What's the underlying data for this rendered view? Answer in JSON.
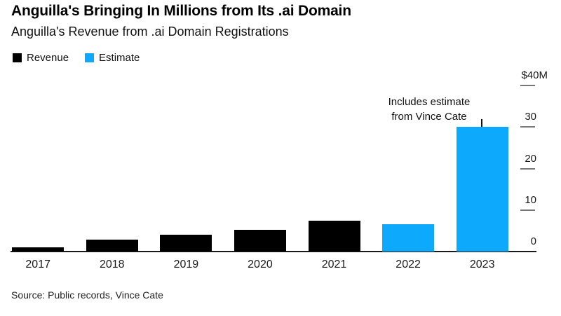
{
  "header": {
    "title": "Anguilla's Bringing In Millions from Its .ai Domain",
    "subtitle": "Anguilla's Revenue from .ai Domain Registrations"
  },
  "legend": {
    "items": [
      {
        "label": "Revenue",
        "color": "#000000"
      },
      {
        "label": "Estimate",
        "color": "#0da9fc"
      }
    ]
  },
  "annotation": {
    "line1": "Includes estimate",
    "line2": "from Vince Cate",
    "target_category": "2023"
  },
  "source": "Source: Public records, Vince Cate",
  "chart_data": {
    "type": "bar",
    "title": "Anguilla's Bringing In Millions from Its .ai Domain",
    "subtitle": "Anguilla's Revenue from .ai Domain Registrations",
    "unit": "USD millions",
    "categories": [
      "2017",
      "2018",
      "2019",
      "2020",
      "2021",
      "2022",
      "2023"
    ],
    "series": [
      {
        "name": "Revenue",
        "color": "#000000",
        "values": [
          1.0,
          2.9,
          4.0,
          5.2,
          7.4,
          null,
          null
        ]
      },
      {
        "name": "Estimate",
        "color": "#0da9fc",
        "values": [
          null,
          null,
          null,
          null,
          null,
          6.6,
          30.0
        ]
      }
    ],
    "ylim": [
      0,
      40
    ],
    "yticks": [
      {
        "value": 40,
        "label": "$40M"
      },
      {
        "value": 30,
        "label": "30"
      },
      {
        "value": 20,
        "label": "20"
      },
      {
        "value": 10,
        "label": "10"
      },
      {
        "value": 0,
        "label": "0"
      }
    ],
    "gridlines": false,
    "axis_side": "right",
    "legend_position": "top-left",
    "annotation_text": "Includes estimate from Vince Cate"
  }
}
